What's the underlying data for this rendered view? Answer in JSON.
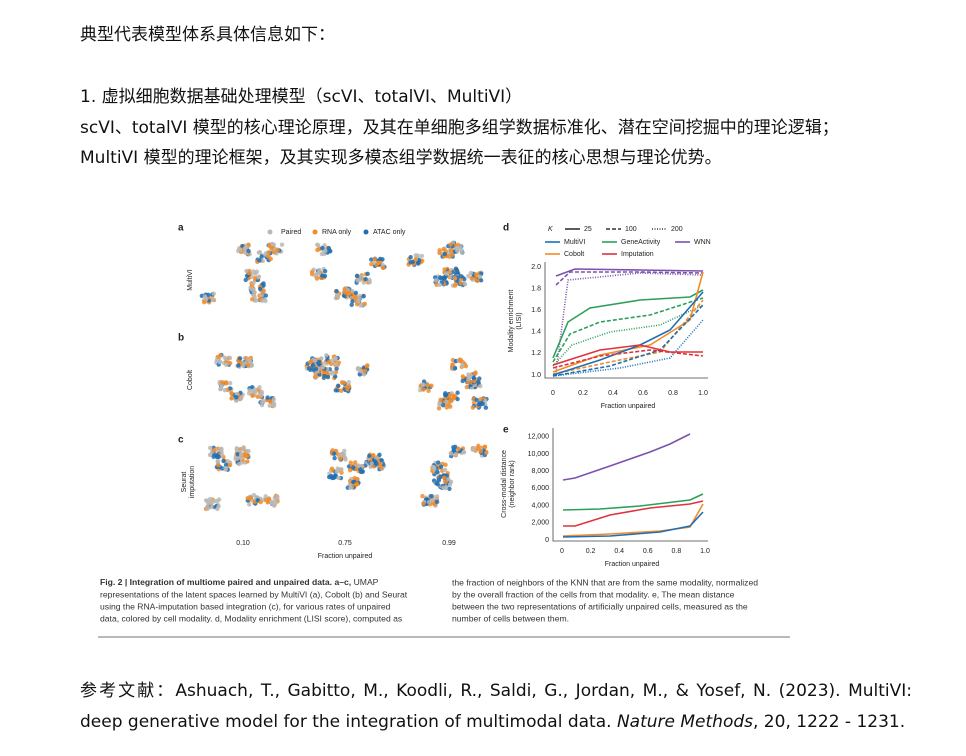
{
  "intro": "典型代表模型体系具体信息如下：",
  "section": {
    "heading": "1. 虚拟细胞数据基础处理模型（scVI、totalVI、MultiVI）",
    "lines": [
      "scVI、totalVI 模型的核心理论原理，及其在单细胞多组学数据标准化、潜在空间挖掘中的理论逻辑；",
      "MultiVI 模型的理论框架，及其实现多模态组学数据统一表征的核心思想与理论优势。"
    ]
  },
  "figure": {
    "panels": {
      "a": "a",
      "b": "b",
      "c": "c",
      "d": "d",
      "e": "e"
    },
    "umap": {
      "legend": [
        "Paired",
        "RNA only",
        "ATAC only"
      ],
      "rows": [
        "MultiVI",
        "Cobolt",
        "Seurat",
        "imputation"
      ],
      "xticks": [
        "0.10",
        "0.75",
        "0.99"
      ],
      "xlabel": "Fraction unpaired"
    },
    "d": {
      "legend_k": {
        "title": "K",
        "items": [
          "25",
          "100",
          "200"
        ]
      },
      "legend_methods": [
        "MultiVI",
        "GeneActivity",
        "WNN",
        "Cobolt",
        "Imputation"
      ],
      "yticks": [
        "1.0",
        "1.2",
        "1.4",
        "1.6",
        "1.8",
        "2.0"
      ],
      "ylabel": [
        "Modality enrichment",
        "(LISI)"
      ],
      "xticks": [
        "0",
        "0.2",
        "0.4",
        "0.6",
        "0.8",
        "1.0"
      ],
      "xlabel": "Fraction unpaired"
    },
    "e": {
      "yticks": [
        "0",
        "2,000",
        "4,000",
        "6,000",
        "8,000",
        "10,000",
        "12,000"
      ],
      "ylabel": [
        "Cross-modal distance",
        "(neighbor rank)"
      ],
      "xticks": [
        "0",
        "0.2",
        "0.4",
        "0.6",
        "0.8",
        "1.0"
      ],
      "xlabel": "Fraction unpaired"
    },
    "caption": {
      "left_bold": "Fig. 2 | Integration of multiome paired and unpaired data. a–c,",
      "left_first_rest": "UMAP",
      "left": [
        "representations of the latent spaces learned by MultiVI (a), Cobolt (b) and Seurat",
        "using the RNA-imputation based integration (c), for various rates of unpaired",
        "data, colored by cell modality. d, Modality enrichment (LISI score), computed as"
      ],
      "right": [
        "the fraction of neighbors of the KNN that are from the same modality, normalized",
        "by the overall fraction of the cells from that modality. e, The mean distance",
        "between the two representations of artificially unpaired cells, measured as the",
        "number of cells between them."
      ]
    }
  },
  "reference": {
    "before": "参考文献：Ashuach, T., Gabitto, M., Koodli, R., Saldi, G., Jordan, M., & Yosef, N. (2023). MultiVI: deep generative model for the integration of multimodal data.",
    "journal": "Nature Methods",
    "after": ", 20, 1222 - 1231."
  }
}
